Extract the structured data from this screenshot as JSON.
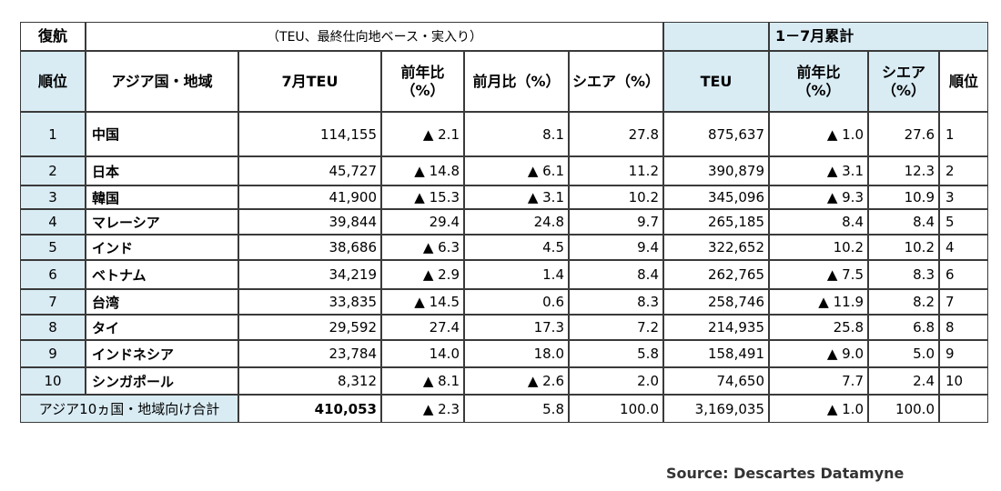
{
  "header": {
    "route": "復航",
    "unit_note": "（TEU、最終仕向地ベース・実入り）",
    "cumulative_label": "1－7月累計"
  },
  "columns": {
    "rank": "順位",
    "region": "アジア国・地域",
    "month_teu": "7月TEU",
    "yoy": "前年比\n（%）",
    "mom": "前月比（%）",
    "share": "シエア（%）",
    "cum_teu": "TEU",
    "cum_yoy": "前年比\n（%）",
    "cum_share": "シエア\n（%）",
    "cum_rank": "順位"
  },
  "rows": [
    {
      "rank": "1",
      "region": "中国",
      "teu": "114,155",
      "yoy": "▲ 2.1",
      "mom": "8.1",
      "share": "27.8",
      "cum_teu": "875,637",
      "cum_yoy": "▲ 1.0",
      "cum_share": "27.6",
      "cum_rank": "1"
    },
    {
      "rank": "2",
      "region": "日本",
      "teu": "45,727",
      "yoy": "▲ 14.8",
      "mom": "▲ 6.1",
      "share": "11.2",
      "cum_teu": "390,879",
      "cum_yoy": "▲ 3.1",
      "cum_share": "12.3",
      "cum_rank": "2"
    },
    {
      "rank": "3",
      "region": "韓国",
      "teu": "41,900",
      "yoy": "▲ 15.3",
      "mom": "▲ 3.1",
      "share": "10.2",
      "cum_teu": "345,096",
      "cum_yoy": "▲ 9.3",
      "cum_share": "10.9",
      "cum_rank": "3"
    },
    {
      "rank": "4",
      "region": "マレーシア",
      "teu": "39,844",
      "yoy": "29.4",
      "mom": "24.8",
      "share": "9.7",
      "cum_teu": "265,185",
      "cum_yoy": "8.4",
      "cum_share": "8.4",
      "cum_rank": "5"
    },
    {
      "rank": "5",
      "region": "インド",
      "teu": "38,686",
      "yoy": "▲ 6.3",
      "mom": "4.5",
      "share": "9.4",
      "cum_teu": "322,652",
      "cum_yoy": "10.2",
      "cum_share": "10.2",
      "cum_rank": "4"
    },
    {
      "rank": "6",
      "region": "ベトナム",
      "teu": "34,219",
      "yoy": "▲ 2.9",
      "mom": "1.4",
      "share": "8.4",
      "cum_teu": "262,765",
      "cum_yoy": "▲ 7.5",
      "cum_share": "8.3",
      "cum_rank": "6"
    },
    {
      "rank": "7",
      "region": "台湾",
      "teu": "33,835",
      "yoy": "▲ 14.5",
      "mom": "0.6",
      "share": "8.3",
      "cum_teu": "258,746",
      "cum_yoy": "▲ 11.9",
      "cum_share": "8.2",
      "cum_rank": "7"
    },
    {
      "rank": "8",
      "region": "タイ",
      "teu": "29,592",
      "yoy": "27.4",
      "mom": "17.3",
      "share": "7.2",
      "cum_teu": "214,935",
      "cum_yoy": "25.8",
      "cum_share": "6.8",
      "cum_rank": "8"
    },
    {
      "rank": "9",
      "region": "インドネシア",
      "teu": "23,784",
      "yoy": "14.0",
      "mom": "18.0",
      "share": "5.8",
      "cum_teu": "158,491",
      "cum_yoy": "▲ 9.0",
      "cum_share": "5.0",
      "cum_rank": "9"
    },
    {
      "rank": "10",
      "region": "シンガポール",
      "teu": "8,312",
      "yoy": "▲ 8.1",
      "mom": "▲ 2.6",
      "share": "2.0",
      "cum_teu": "74,650",
      "cum_yoy": "7.7",
      "cum_share": "2.4",
      "cum_rank": "10"
    }
  ],
  "total": {
    "label": "アジア10ヵ国・地域向け合計",
    "teu": "410,053",
    "yoy": "▲ 2.3",
    "mom": "5.8",
    "share": "100.0",
    "cum_teu": "3,169,035",
    "cum_yoy": "▲ 1.0",
    "cum_share": "100.0"
  },
  "footer": {
    "source": "Source: Descartes Datamyne"
  },
  "colors": {
    "header_blue": "#d9ecf4",
    "border": "#3a3a3a"
  }
}
